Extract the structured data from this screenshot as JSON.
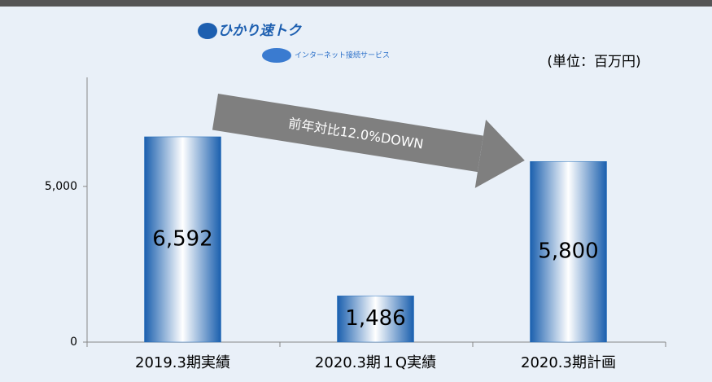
{
  "chart_data": {
    "type": "bar",
    "logo_title": "ひかり速トク",
    "logo_subtitle": "インターネット接続サービス",
    "unit_label": "(単位：百万円)",
    "annotation": "前年対比12.0%DOWN",
    "categories": [
      "2019.3期実績",
      "2020.3期１Q実績",
      "2020.3期計画"
    ],
    "values": [
      6592,
      1486,
      5800
    ],
    "value_labels": [
      "6,592",
      "1,486",
      "5,800"
    ],
    "color": "#1e6ab8",
    "ylim": [
      0,
      8500
    ],
    "yticks": [
      0,
      {
        "value": 5000,
        "label": "5,000"
      }
    ],
    "grid": false
  }
}
